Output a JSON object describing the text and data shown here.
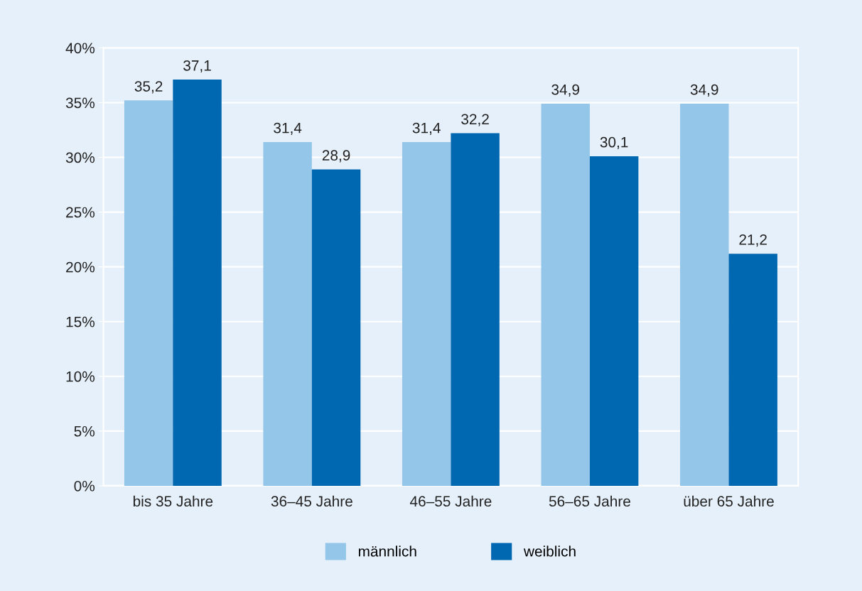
{
  "chart_data": {
    "type": "bar",
    "categories": [
      "bis 35 Jahre",
      "36–45 Jahre",
      "46–55 Jahre",
      "56–65 Jahre",
      "über 65 Jahre"
    ],
    "series": [
      {
        "name": "männlich",
        "color": "#94c6ea",
        "values": [
          35.2,
          31.4,
          31.4,
          34.9,
          34.9
        ],
        "value_labels": [
          "35,2",
          "31,4",
          "31,4",
          "34,9",
          "34,9"
        ]
      },
      {
        "name": "weiblich",
        "color": "#0067b1",
        "values": [
          37.1,
          28.9,
          32.2,
          30.1,
          21.2
        ],
        "value_labels": [
          "37,1",
          "28,9",
          "32,2",
          "30,1",
          "21,2"
        ]
      }
    ],
    "ylim": [
      0,
      40
    ],
    "yticks": [
      {
        "value": 0,
        "label": "0%"
      },
      {
        "value": 5,
        "label": "5%"
      },
      {
        "value": 10,
        "label": "10%"
      },
      {
        "value": 15,
        "label": "15%"
      },
      {
        "value": 20,
        "label": "20%"
      },
      {
        "value": 25,
        "label": "25%"
      },
      {
        "value": 30,
        "label": "30%"
      },
      {
        "value": 35,
        "label": "35%"
      },
      {
        "value": 40,
        "label": "40%"
      }
    ],
    "grid": "y",
    "legend": "bottom"
  }
}
